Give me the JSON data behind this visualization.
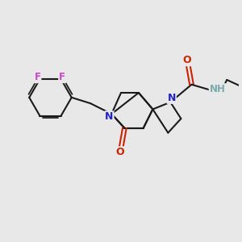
{
  "bg_color": "#e8e8e8",
  "bond_color": "#1a1a1a",
  "N_color": "#2222cc",
  "O_color": "#cc2200",
  "F_color": "#cc44cc",
  "NH_color": "#7aacac",
  "line_width": 1.5,
  "font_size": 9,
  "fig_size": [
    3.0,
    3.0
  ],
  "dpi": 100,
  "xlim": [
    0,
    10
  ],
  "ylim": [
    0,
    10
  ]
}
